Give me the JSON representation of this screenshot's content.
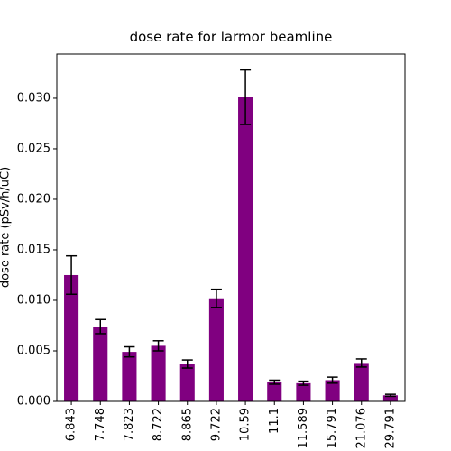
{
  "chart_data": {
    "type": "bar",
    "title": "dose rate for larmor beamline",
    "y_label": "dose rate (pSv/h/uC)",
    "categories": [
      "6.843",
      "7.748",
      "7.823",
      "8.722",
      "8.865",
      "9.722",
      "10.59",
      "11.1",
      "11.589",
      "15.791",
      "21.076",
      "29.791"
    ],
    "values": [
      0.0125,
      0.0074,
      0.0049,
      0.0055,
      0.0037,
      0.0102,
      0.0301,
      0.0019,
      0.0018,
      0.0021,
      0.0038,
      0.0006
    ],
    "errors": [
      0.0019,
      0.0007,
      0.0005,
      0.0005,
      0.0004,
      0.0009,
      0.0027,
      0.0002,
      0.0002,
      0.0003,
      0.0004,
      0.0001
    ],
    "color": "#800080",
    "ylim": [
      0,
      0.03437
    ],
    "yticks": [
      {
        "value": 0,
        "label": "0.000"
      },
      {
        "value": 0.005,
        "label": "0.005"
      },
      {
        "value": 0.01,
        "label": "0.010"
      },
      {
        "value": 0.015,
        "label": "0.015"
      },
      {
        "value": 0.02,
        "label": "0.020"
      },
      {
        "value": 0.025,
        "label": "0.025"
      },
      {
        "value": 0.03,
        "label": "0.030"
      }
    ],
    "grid": false
  }
}
